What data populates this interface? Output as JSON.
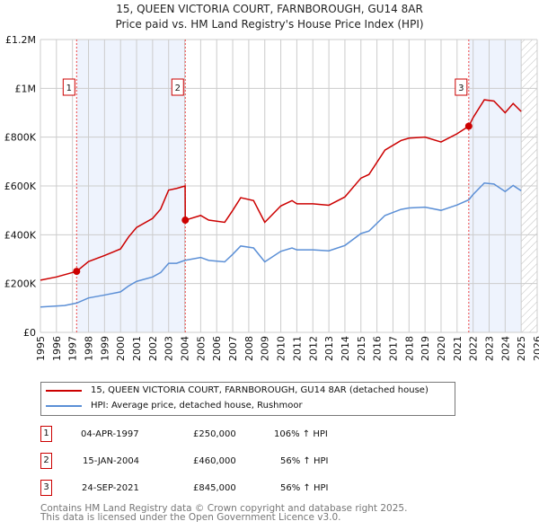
{
  "chart_data": {
    "type": "line",
    "title": "15, QUEEN VICTORIA COURT, FARNBOROUGH, GU14 8AR",
    "subtitle": "Price paid vs. HM Land Registry's House Price Index (HPI)",
    "xlim": [
      1995,
      2026
    ],
    "ylim": [
      0,
      1200000
    ],
    "y_ticks": [
      {
        "v": 0,
        "label": "£0"
      },
      {
        "v": 200000,
        "label": "£200K"
      },
      {
        "v": 400000,
        "label": "£400K"
      },
      {
        "v": 600000,
        "label": "£600K"
      },
      {
        "v": 800000,
        "label": "£800K"
      },
      {
        "v": 1000000,
        "label": "£1M"
      },
      {
        "v": 1200000,
        "label": "£1.2M"
      }
    ],
    "x_ticks": [
      "1995",
      "1996",
      "1997",
      "1998",
      "1999",
      "2000",
      "2001",
      "2002",
      "2003",
      "2004",
      "2005",
      "2006",
      "2007",
      "2008",
      "2009",
      "2010",
      "2011",
      "2012",
      "2013",
      "2014",
      "2015",
      "2016",
      "2017",
      "2018",
      "2019",
      "2020",
      "2021",
      "2022",
      "2023",
      "2024",
      "2025",
      "2026"
    ],
    "grid": true,
    "shaded_ranges": [
      [
        1997.26,
        2004.04
      ],
      [
        2021.73,
        2025.0
      ]
    ],
    "hatched_range": [
      2025.0,
      2026
    ],
    "series": [
      {
        "name": "15, QUEEN VICTORIA COURT, FARNBOROUGH, GU14 8AR (detached house)",
        "color": "#cc0000",
        "x": [
          1995,
          1996,
          1997.26,
          1998,
          1999,
          2000,
          2000.5,
          2001,
          2002,
          2002.5,
          2003,
          2003.5,
          2004.03,
          2004.04,
          2005,
          2005.5,
          2006.5,
          2007,
          2007.5,
          2008.3,
          2009,
          2010,
          2010.7,
          2011,
          2012,
          2013,
          2014,
          2015,
          2015.5,
          2016.5,
          2017.5,
          2018,
          2019,
          2020,
          2021,
          2021.73,
          2022,
          2022.7,
          2023.3,
          2024,
          2024.5,
          2025
        ],
        "y": [
          214000,
          227000,
          250000,
          290000,
          315000,
          342000,
          391000,
          430000,
          467000,
          505000,
          583000,
          590000,
          600000,
          460000,
          479000,
          460000,
          451000,
          500000,
          552000,
          540000,
          451000,
          518000,
          540000,
          527000,
          527000,
          521000,
          555000,
          632000,
          647000,
          747000,
          786000,
          796000,
          800000,
          780000,
          814000,
          845000,
          880000,
          953000,
          948000,
          900000,
          938000,
          905000
        ]
      },
      {
        "name": "HPI: Average price, detached house, Rushmoor",
        "color": "#5b8fd6",
        "x": [
          1995,
          1996.5,
          1997.26,
          1998,
          1999,
          2000,
          2000.5,
          2001,
          2002,
          2002.5,
          2003,
          2003.5,
          2004,
          2005,
          2005.5,
          2006.5,
          2007,
          2007.5,
          2008.3,
          2009,
          2010,
          2010.7,
          2011,
          2012,
          2013,
          2014,
          2015,
          2015.5,
          2016.5,
          2017.5,
          2018,
          2019,
          2020,
          2021,
          2021.73,
          2022,
          2022.7,
          2023.3,
          2024,
          2024.5,
          2025
        ],
        "y": [
          104000,
          110000,
          120000,
          141000,
          153000,
          166000,
          190000,
          209000,
          227000,
          245000,
          283000,
          283000,
          295000,
          307000,
          295000,
          289000,
          320000,
          354000,
          346000,
          289000,
          332000,
          346000,
          338000,
          338000,
          334000,
          356000,
          405000,
          415000,
          479000,
          504000,
          510000,
          513000,
          500000,
          522000,
          543000,
          565000,
          612000,
          608000,
          577000,
          602000,
          580000
        ]
      }
    ],
    "sales": [
      {
        "n": "1",
        "x": 1997.26,
        "y": 250000,
        "date": "04-APR-1997",
        "price": "£250,000",
        "hpi": "106% ↑ HPI"
      },
      {
        "n": "2",
        "x": 2004.04,
        "y": 460000,
        "date": "15-JAN-2004",
        "price": "£460,000",
        "hpi": "56% ↑ HPI"
      },
      {
        "n": "3",
        "x": 2021.73,
        "y": 845000,
        "date": "24-SEP-2021",
        "price": "£845,000",
        "hpi": "56% ↑ HPI"
      }
    ],
    "legend_placement": "below"
  },
  "footer": {
    "line1": "Contains HM Land Registry data © Crown copyright and database right 2025.",
    "line2": "This data is licensed under the Open Government Licence v3.0."
  }
}
